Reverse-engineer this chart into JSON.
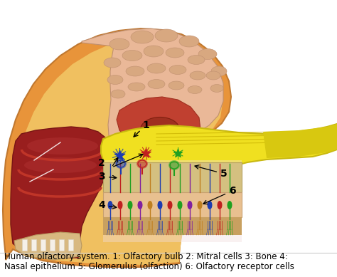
{
  "caption_line1": "Human olfactory system. 1: Olfactory bulb 2: Mitral cells 3: Bone 4:",
  "caption_line2": "Nasal epithelium 5: Glomerulus (olfaction) 6: Olfactory receptor cells",
  "bg_color": "#ffffff",
  "caption_fontsize": 8.5,
  "head_color": "#E8943A",
  "head_edge": "#C07830",
  "skull_color": "#F5C870",
  "brain_color": "#EAB898",
  "brain_edge": "#C09070",
  "gyri_color": "#D4A080",
  "corpus_color": "#C05030",
  "thal_color": "#A03020",
  "brainstem_color": "#C89840",
  "cereb_color": "#C0A0C8",
  "nasal_color": "#991E1E",
  "nasal_edge": "#771414",
  "turbinate_color": "#C03528",
  "ob_color": "#F0E020",
  "ob_edge": "#C8B810",
  "ob_inner": "#E8D818",
  "nerve_lines": "#C8B000",
  "bone_color": "#D4C090",
  "epi_color": "#E8C898",
  "mucus_color": "#C8A870",
  "overlay_color": "#F0E8E8",
  "neuron_colors": [
    "#1E3DB0",
    "#C02020",
    "#20A020",
    "#8020A0",
    "#C08020"
  ],
  "label_color": "#000000",
  "white_lines": "#FFFFFF",
  "separator_color": "#CCCCCC"
}
